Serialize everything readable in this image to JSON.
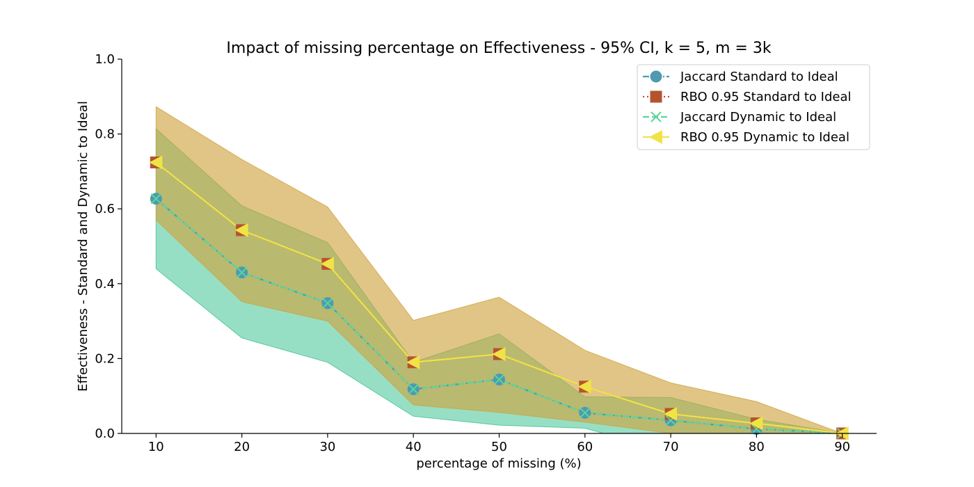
{
  "chart_data": {
    "type": "line",
    "title": "Impact of missing percentage on Effectiveness - 95% CI, k = 5, m = 3k",
    "xlabel": "percentage of missing (%)",
    "ylabel": "Effectiveness - Standard and Dynamic to Ideal",
    "x": [
      10,
      20,
      30,
      40,
      50,
      60,
      70,
      80,
      90
    ],
    "xlim": [
      6,
      94
    ],
    "ylim": [
      0,
      1.0
    ],
    "xticks": [
      "10",
      "20",
      "30",
      "40",
      "50",
      "60",
      "70",
      "80",
      "90"
    ],
    "yticks": [
      "0.0",
      "0.2",
      "0.4",
      "0.6",
      "0.8",
      "1.0"
    ],
    "grid": false,
    "legend_position": "top-right",
    "series": [
      {
        "name": "Jaccard Standard to Ideal",
        "color": "#4f9ab0",
        "marker": "circle",
        "linestyle": "dashdot",
        "values": [
          0.627,
          0.43,
          0.348,
          0.118,
          0.144,
          0.055,
          0.035,
          0.012,
          0.0
        ]
      },
      {
        "name": "RBO 0.95 Standard to Ideal",
        "color": "#b5532f",
        "marker": "square",
        "linestyle": "dotted",
        "values": [
          0.724,
          0.543,
          0.453,
          0.19,
          0.212,
          0.125,
          0.052,
          0.027,
          0.0
        ]
      },
      {
        "name": "Jaccard Dynamic to Ideal",
        "color": "#5ad69a",
        "marker": "x",
        "linestyle": "dashed",
        "values": [
          0.627,
          0.43,
          0.348,
          0.118,
          0.144,
          0.055,
          0.035,
          0.012,
          0.0
        ]
      },
      {
        "name": "RBO 0.95 Dynamic to Ideal",
        "color": "#f0e346",
        "marker": "triangle-left",
        "linestyle": "solid",
        "values": [
          0.724,
          0.543,
          0.453,
          0.19,
          0.212,
          0.125,
          0.052,
          0.027,
          0.0
        ]
      }
    ],
    "confidence_bands": [
      {
        "color": "#38c18e",
        "opacity": 0.52,
        "lower": [
          0.44,
          0.255,
          0.19,
          0.046,
          0.022,
          0.014,
          -0.05,
          -0.05,
          0.0
        ],
        "upper": [
          0.814,
          0.608,
          0.51,
          0.19,
          0.266,
          0.098,
          0.096,
          0.038,
          0.0
        ]
      },
      {
        "color": "#cfa23c",
        "opacity": 0.62,
        "lower": [
          0.57,
          0.352,
          0.3,
          0.076,
          0.056,
          0.03,
          0.0,
          0.0,
          0.0
        ],
        "upper": [
          0.873,
          0.732,
          0.605,
          0.302,
          0.364,
          0.222,
          0.135,
          0.085,
          0.0
        ]
      }
    ]
  }
}
